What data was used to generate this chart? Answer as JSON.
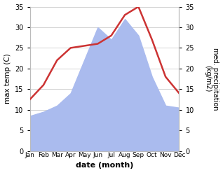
{
  "months": [
    "Jan",
    "Feb",
    "Mar",
    "Apr",
    "May",
    "Jun",
    "Jul",
    "Aug",
    "Sep",
    "Oct",
    "Nov",
    "Dec"
  ],
  "max_temp": [
    12.5,
    16.0,
    22.0,
    25.0,
    25.5,
    26.0,
    28.0,
    33.0,
    35.0,
    27.0,
    18.0,
    14.0
  ],
  "precipitation": [
    8.5,
    9.5,
    11.0,
    14.0,
    22.0,
    30.0,
    27.0,
    32.0,
    28.0,
    18.0,
    11.0,
    10.5
  ],
  "temp_color": "#cc3333",
  "precip_color": "#aabbee",
  "ylabel_left": "max temp (C)",
  "ylabel_right": "med. precipitation\n(kg/m2)",
  "xlabel": "date (month)",
  "ylim": [
    0,
    35
  ],
  "yticks": [
    0,
    5,
    10,
    15,
    20,
    25,
    30,
    35
  ],
  "spine_color": "#bbbbbb",
  "grid_color": "#cccccc"
}
